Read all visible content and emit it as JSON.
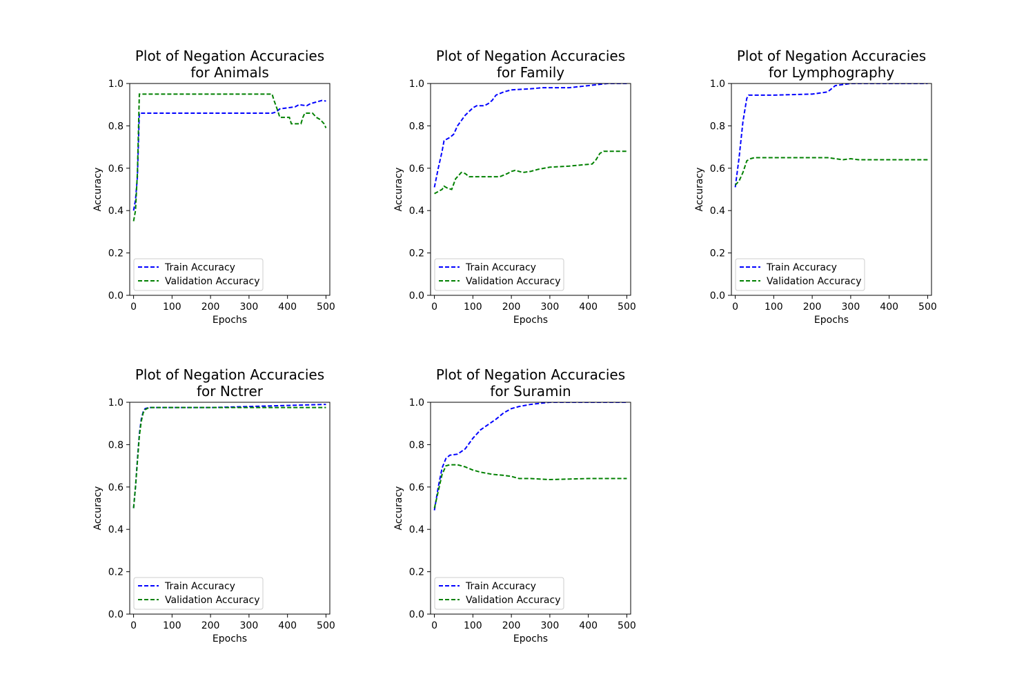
{
  "chart_data": [
    {
      "type": "line",
      "title": "Plot of Negation Accuracies\nfor Animals",
      "xlabel": "Epochs",
      "ylabel": "Accuracy",
      "xlim": [
        -10,
        510
      ],
      "ylim": [
        0.0,
        1.0
      ],
      "xticks": [
        0,
        100,
        200,
        300,
        400,
        500
      ],
      "yticks": [
        0.0,
        0.2,
        0.4,
        0.6,
        0.8,
        1.0
      ],
      "legend": "lower-left",
      "grid": false,
      "series": [
        {
          "name": "Train Accuracy",
          "color": "#0000ff",
          "points": [
            [
              0,
              0.4
            ],
            [
              5,
              0.45
            ],
            [
              10,
              0.56
            ],
            [
              15,
              0.86
            ],
            [
              50,
              0.86
            ],
            [
              100,
              0.86
            ],
            [
              200,
              0.86
            ],
            [
              300,
              0.86
            ],
            [
              360,
              0.86
            ],
            [
              370,
              0.865
            ],
            [
              380,
              0.88
            ],
            [
              400,
              0.885
            ],
            [
              420,
              0.89
            ],
            [
              430,
              0.9
            ],
            [
              450,
              0.895
            ],
            [
              460,
              0.905
            ],
            [
              470,
              0.91
            ],
            [
              480,
              0.915
            ],
            [
              490,
              0.92
            ],
            [
              500,
              0.917
            ]
          ]
        },
        {
          "name": "Validation Accuracy",
          "color": "#008000",
          "points": [
            [
              0,
              0.35
            ],
            [
              5,
              0.4
            ],
            [
              10,
              0.58
            ],
            [
              15,
              0.95
            ],
            [
              50,
              0.95
            ],
            [
              100,
              0.95
            ],
            [
              200,
              0.95
            ],
            [
              300,
              0.95
            ],
            [
              360,
              0.95
            ],
            [
              365,
              0.92
            ],
            [
              375,
              0.87
            ],
            [
              380,
              0.84
            ],
            [
              405,
              0.84
            ],
            [
              410,
              0.81
            ],
            [
              435,
              0.81
            ],
            [
              440,
              0.84
            ],
            [
              445,
              0.86
            ],
            [
              465,
              0.86
            ],
            [
              475,
              0.84
            ],
            [
              485,
              0.83
            ],
            [
              495,
              0.81
            ],
            [
              500,
              0.79
            ]
          ]
        }
      ]
    },
    {
      "type": "line",
      "title": "Plot of Negation Accuracies\nfor Family",
      "xlabel": "Epochs",
      "ylabel": "Accuracy",
      "xlim": [
        -10,
        510
      ],
      "ylim": [
        0.0,
        1.0
      ],
      "xticks": [
        0,
        100,
        200,
        300,
        400,
        500
      ],
      "yticks": [
        0.0,
        0.2,
        0.4,
        0.6,
        0.8,
        1.0
      ],
      "legend": "lower-left",
      "grid": false,
      "series": [
        {
          "name": "Train Accuracy",
          "color": "#0000ff",
          "points": [
            [
              0,
              0.51
            ],
            [
              10,
              0.6
            ],
            [
              20,
              0.68
            ],
            [
              25,
              0.73
            ],
            [
              40,
              0.745
            ],
            [
              50,
              0.76
            ],
            [
              60,
              0.8
            ],
            [
              80,
              0.85
            ],
            [
              100,
              0.885
            ],
            [
              110,
              0.895
            ],
            [
              130,
              0.895
            ],
            [
              140,
              0.905
            ],
            [
              150,
              0.92
            ],
            [
              160,
              0.945
            ],
            [
              180,
              0.96
            ],
            [
              200,
              0.97
            ],
            [
              250,
              0.975
            ],
            [
              280,
              0.98
            ],
            [
              350,
              0.98
            ],
            [
              400,
              0.99
            ],
            [
              450,
              1.0
            ],
            [
              500,
              1.0
            ]
          ]
        },
        {
          "name": "Validation Accuracy",
          "color": "#008000",
          "points": [
            [
              0,
              0.48
            ],
            [
              10,
              0.49
            ],
            [
              20,
              0.5
            ],
            [
              25,
              0.515
            ],
            [
              35,
              0.505
            ],
            [
              45,
              0.5
            ],
            [
              55,
              0.55
            ],
            [
              70,
              0.58
            ],
            [
              80,
              0.575
            ],
            [
              90,
              0.56
            ],
            [
              120,
              0.56
            ],
            [
              150,
              0.56
            ],
            [
              170,
              0.56
            ],
            [
              190,
              0.575
            ],
            [
              200,
              0.585
            ],
            [
              210,
              0.59
            ],
            [
              230,
              0.58
            ],
            [
              250,
              0.585
            ],
            [
              270,
              0.595
            ],
            [
              300,
              0.605
            ],
            [
              350,
              0.61
            ],
            [
              410,
              0.62
            ],
            [
              420,
              0.64
            ],
            [
              430,
              0.67
            ],
            [
              440,
              0.68
            ],
            [
              500,
              0.68
            ]
          ]
        }
      ]
    },
    {
      "type": "line",
      "title": "Plot of Negation Accuracies\nfor Lymphography",
      "xlabel": "Epochs",
      "ylabel": "Accuracy",
      "xlim": [
        -10,
        510
      ],
      "ylim": [
        0.0,
        1.0
      ],
      "xticks": [
        0,
        100,
        200,
        300,
        400,
        500
      ],
      "yticks": [
        0.0,
        0.2,
        0.4,
        0.6,
        0.8,
        1.0
      ],
      "legend": "lower-left",
      "grid": false,
      "series": [
        {
          "name": "Train Accuracy",
          "color": "#0000ff",
          "points": [
            [
              0,
              0.51
            ],
            [
              10,
              0.65
            ],
            [
              20,
              0.82
            ],
            [
              30,
              0.93
            ],
            [
              35,
              0.945
            ],
            [
              60,
              0.945
            ],
            [
              100,
              0.945
            ],
            [
              200,
              0.95
            ],
            [
              240,
              0.96
            ],
            [
              250,
              0.975
            ],
            [
              260,
              0.99
            ],
            [
              280,
              0.995
            ],
            [
              300,
              1.0
            ],
            [
              500,
              1.0
            ]
          ]
        },
        {
          "name": "Validation Accuracy",
          "color": "#008000",
          "points": [
            [
              0,
              0.52
            ],
            [
              10,
              0.54
            ],
            [
              20,
              0.58
            ],
            [
              30,
              0.635
            ],
            [
              40,
              0.645
            ],
            [
              50,
              0.65
            ],
            [
              100,
              0.65
            ],
            [
              200,
              0.65
            ],
            [
              240,
              0.65
            ],
            [
              260,
              0.645
            ],
            [
              280,
              0.64
            ],
            [
              300,
              0.645
            ],
            [
              320,
              0.64
            ],
            [
              400,
              0.64
            ],
            [
              500,
              0.64
            ]
          ]
        }
      ]
    },
    {
      "type": "line",
      "title": "Plot of Negation Accuracies\nfor Nctrer",
      "xlabel": "Epochs",
      "ylabel": "Accuracy",
      "xlim": [
        -10,
        510
      ],
      "ylim": [
        0.0,
        1.0
      ],
      "xticks": [
        0,
        100,
        200,
        300,
        400,
        500
      ],
      "yticks": [
        0.0,
        0.2,
        0.4,
        0.6,
        0.8,
        1.0
      ],
      "legend": "lower-left",
      "grid": false,
      "series": [
        {
          "name": "Train Accuracy",
          "color": "#0000ff",
          "points": [
            [
              0,
              0.5
            ],
            [
              5,
              0.6
            ],
            [
              10,
              0.73
            ],
            [
              15,
              0.85
            ],
            [
              20,
              0.92
            ],
            [
              25,
              0.955
            ],
            [
              30,
              0.97
            ],
            [
              40,
              0.975
            ],
            [
              100,
              0.975
            ],
            [
              200,
              0.975
            ],
            [
              300,
              0.98
            ],
            [
              400,
              0.985
            ],
            [
              500,
              0.99
            ]
          ]
        },
        {
          "name": "Validation Accuracy",
          "color": "#008000",
          "points": [
            [
              0,
              0.5
            ],
            [
              5,
              0.6
            ],
            [
              10,
              0.72
            ],
            [
              15,
              0.84
            ],
            [
              20,
              0.91
            ],
            [
              25,
              0.95
            ],
            [
              30,
              0.965
            ],
            [
              40,
              0.975
            ],
            [
              100,
              0.975
            ],
            [
              200,
              0.975
            ],
            [
              300,
              0.975
            ],
            [
              400,
              0.975
            ],
            [
              500,
              0.975
            ]
          ]
        }
      ]
    },
    {
      "type": "line",
      "title": "Plot of Negation Accuracies\nfor Suramin",
      "xlabel": "Epochs",
      "ylabel": "Accuracy",
      "xlim": [
        -10,
        510
      ],
      "ylim": [
        0.0,
        1.0
      ],
      "xticks": [
        0,
        100,
        200,
        300,
        400,
        500
      ],
      "yticks": [
        0.0,
        0.2,
        0.4,
        0.6,
        0.8,
        1.0
      ],
      "legend": "lower-left",
      "grid": false,
      "series": [
        {
          "name": "Train Accuracy",
          "color": "#0000ff",
          "points": [
            [
              0,
              0.49
            ],
            [
              10,
              0.6
            ],
            [
              20,
              0.69
            ],
            [
              30,
              0.735
            ],
            [
              40,
              0.75
            ],
            [
              60,
              0.755
            ],
            [
              80,
              0.78
            ],
            [
              100,
              0.83
            ],
            [
              120,
              0.87
            ],
            [
              140,
              0.895
            ],
            [
              160,
              0.92
            ],
            [
              180,
              0.95
            ],
            [
              200,
              0.97
            ],
            [
              220,
              0.98
            ],
            [
              250,
              0.99
            ],
            [
              300,
              1.0
            ],
            [
              500,
              1.0
            ]
          ]
        },
        {
          "name": "Validation Accuracy",
          "color": "#008000",
          "points": [
            [
              0,
              0.5
            ],
            [
              10,
              0.58
            ],
            [
              20,
              0.66
            ],
            [
              30,
              0.7
            ],
            [
              40,
              0.705
            ],
            [
              60,
              0.705
            ],
            [
              80,
              0.695
            ],
            [
              100,
              0.68
            ],
            [
              120,
              0.67
            ],
            [
              150,
              0.66
            ],
            [
              180,
              0.655
            ],
            [
              200,
              0.65
            ],
            [
              220,
              0.64
            ],
            [
              250,
              0.64
            ],
            [
              300,
              0.635
            ],
            [
              400,
              0.64
            ],
            [
              500,
              0.64
            ]
          ]
        }
      ]
    }
  ]
}
